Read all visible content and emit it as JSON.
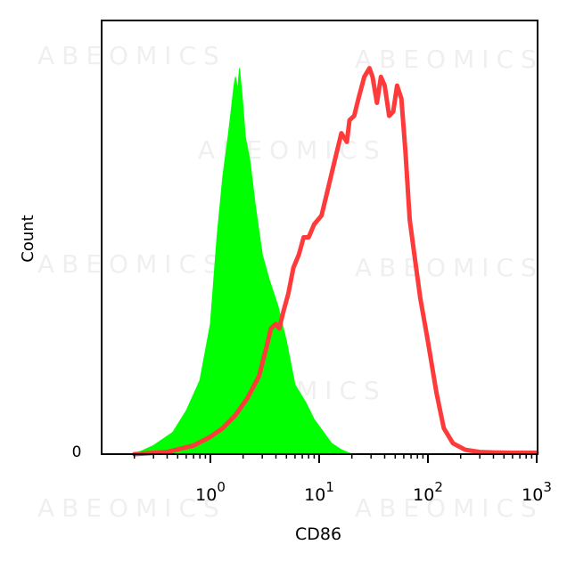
{
  "watermark": "ABEOMICS",
  "chart_data": {
    "type": "area",
    "xlabel": "CD86",
    "ylabel": "Count",
    "x_scale": "log",
    "xlim": [
      0.1,
      1000
    ],
    "ylim": [
      0,
      1
    ],
    "y_tick_labels": [
      {
        "value": 0,
        "label": "0"
      }
    ],
    "x_ticks": [
      {
        "value": 1,
        "base": "10",
        "exp": "0"
      },
      {
        "value": 10,
        "base": "10",
        "exp": "1"
      },
      {
        "value": 100,
        "base": "10",
        "exp": "2"
      },
      {
        "value": 1000,
        "base": "10",
        "exp": "3"
      }
    ],
    "grid": false,
    "legend": "none",
    "series": [
      {
        "style": "filled",
        "color": "#00ff00",
        "x": [
          0.2,
          0.3,
          0.45,
          0.6,
          0.8,
          1.0,
          1.15,
          1.3,
          1.45,
          1.55,
          1.65,
          1.7,
          1.78,
          1.85,
          1.95,
          2.1,
          2.3,
          2.6,
          3.0,
          3.5,
          4.2,
          5.0,
          6.0,
          7.5,
          9.0,
          11,
          13,
          16,
          20
        ],
        "y": [
          0.0,
          0.02,
          0.05,
          0.1,
          0.17,
          0.3,
          0.5,
          0.64,
          0.73,
          0.79,
          0.85,
          0.87,
          0.84,
          0.89,
          0.83,
          0.73,
          0.68,
          0.57,
          0.46,
          0.4,
          0.34,
          0.26,
          0.16,
          0.12,
          0.08,
          0.05,
          0.025,
          0.01,
          0.0
        ]
      },
      {
        "style": "line",
        "color": "#ff3a3a",
        "x": [
          0.2,
          0.4,
          0.7,
          1.0,
          1.3,
          1.7,
          2.2,
          2.8,
          3.3,
          3.6,
          4.0,
          4.3,
          4.7,
          5.2,
          5.8,
          6.5,
          7.2,
          8.0,
          9.0,
          10.5,
          12,
          14,
          16,
          18,
          19,
          21,
          23,
          26,
          29,
          31,
          34,
          37,
          40,
          44,
          48,
          52,
          57,
          62,
          68,
          75,
          85,
          100,
          120,
          140,
          170,
          220,
          300,
          400,
          600,
          1000
        ],
        "y": [
          0.0,
          0.005,
          0.02,
          0.04,
          0.06,
          0.09,
          0.13,
          0.18,
          0.25,
          0.29,
          0.3,
          0.29,
          0.33,
          0.37,
          0.43,
          0.46,
          0.5,
          0.5,
          0.53,
          0.55,
          0.61,
          0.68,
          0.74,
          0.72,
          0.77,
          0.78,
          0.82,
          0.87,
          0.89,
          0.87,
          0.81,
          0.87,
          0.85,
          0.78,
          0.79,
          0.85,
          0.82,
          0.7,
          0.54,
          0.46,
          0.36,
          0.26,
          0.14,
          0.06,
          0.025,
          0.01,
          0.005,
          0.004,
          0.003,
          0.003
        ]
      }
    ]
  }
}
